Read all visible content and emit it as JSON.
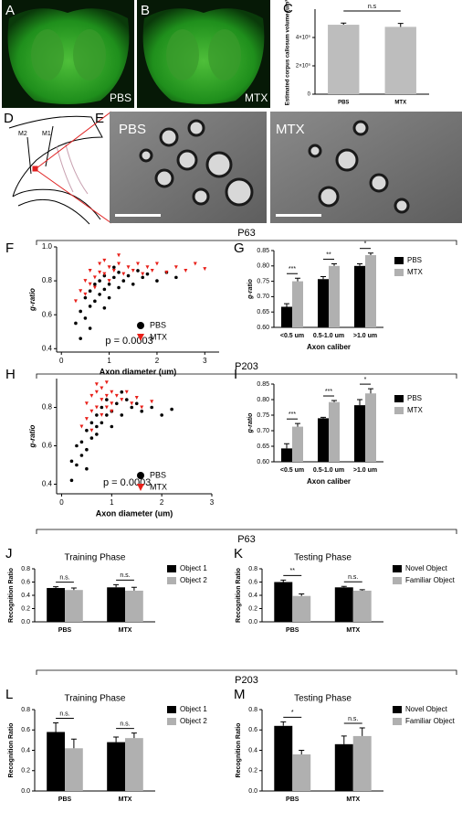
{
  "figure": {
    "panel_labels": [
      "A",
      "B",
      "C",
      "D",
      "E",
      "F",
      "G",
      "H",
      "I",
      "J",
      "K",
      "L",
      "M"
    ],
    "image_labels": {
      "a": "PBS",
      "b": "MTX",
      "e_left": "PBS",
      "e_right": "MTX"
    },
    "diagram_labels": [
      "M2",
      "M1"
    ],
    "section_labels": [
      "P63",
      "P203",
      "P63",
      "P203"
    ]
  },
  "chart_data": [
    {
      "type": "bar",
      "ylabel": "Estimated corpus callosum volume (um³)",
      "categories": [
        "PBS",
        "MTX"
      ],
      "values": [
        4900000000,
        4750000000
      ],
      "errors": [
        120000000,
        240000000
      ],
      "color": "#bdbdbd",
      "ylim": [
        0,
        6000000000
      ],
      "yticks": [
        0,
        {
          "value": 2000000000,
          "label": "2×10⁹"
        },
        {
          "value": 4000000000,
          "label": "4×10⁹"
        }
      ],
      "annotation": "n.s"
    },
    {
      "type": "scatter",
      "xlabel": "Axon diameter (um)",
      "ylabel": "g-ratio",
      "annotation": "p = 0.0003",
      "xlim": [
        -0.1,
        3.3
      ],
      "xticks": [
        0,
        1,
        2,
        3
      ],
      "ylim": [
        0.38,
        1.0
      ],
      "yticks": [
        0.4,
        0.6,
        0.8,
        {
          "value": 1,
          "label": "1.0"
        }
      ],
      "series": [
        {
          "name": "PBS",
          "color": "#000000",
          "marker": "circle",
          "x": [
            0.3,
            0.4,
            0.5,
            0.5,
            0.6,
            0.6,
            0.7,
            0.7,
            0.8,
            0.8,
            0.9,
            0.9,
            1.0,
            1.0,
            1.1,
            1.2,
            1.2,
            1.3,
            1.4,
            1.5,
            1.6,
            1.7,
            1.8,
            2.0,
            2.2,
            2.4,
            0.4,
            0.6,
            0.9,
            1.1
          ],
          "y": [
            0.55,
            0.62,
            0.58,
            0.7,
            0.65,
            0.74,
            0.68,
            0.78,
            0.72,
            0.8,
            0.75,
            0.83,
            0.78,
            0.7,
            0.82,
            0.76,
            0.85,
            0.8,
            0.83,
            0.78,
            0.86,
            0.82,
            0.84,
            0.8,
            0.85,
            0.82,
            0.46,
            0.52,
            0.64,
            0.88
          ]
        },
        {
          "name": "MTX",
          "color": "#e8201a",
          "marker": "triangle",
          "x": [
            0.3,
            0.4,
            0.5,
            0.6,
            0.6,
            0.7,
            0.8,
            0.8,
            0.9,
            1.0,
            1.0,
            1.1,
            1.2,
            1.3,
            1.4,
            1.5,
            1.6,
            1.7,
            1.8,
            1.9,
            2.0,
            2.2,
            2.4,
            2.6,
            2.8,
            3.0,
            0.5,
            0.7,
            0.9,
            1.2
          ],
          "y": [
            0.68,
            0.74,
            0.8,
            0.78,
            0.86,
            0.82,
            0.85,
            0.9,
            0.84,
            0.88,
            0.8,
            0.86,
            0.9,
            0.84,
            0.88,
            0.86,
            0.9,
            0.84,
            0.88,
            0.86,
            0.9,
            0.85,
            0.88,
            0.86,
            0.9,
            0.87,
            0.72,
            0.76,
            0.92,
            0.95
          ]
        }
      ]
    },
    {
      "type": "bar",
      "xlabel": "Axon caliber",
      "ylabel": "g-ratio",
      "categories": [
        "<0.5 um",
        "0.5-1.0 um",
        ">1.0 um"
      ],
      "ylim": [
        0.6,
        0.85
      ],
      "yticks": [
        {
          "value": 0.6,
          "label": "0.60"
        },
        0.65,
        {
          "value": 0.7,
          "label": "0.70"
        },
        0.75,
        {
          "value": 0.8,
          "label": "0.80"
        },
        0.85
      ],
      "series": [
        {
          "name": "PBS",
          "color": "#000000",
          "values": [
            0.667,
            0.757,
            0.8
          ],
          "errors": [
            0.01,
            0.008,
            0.007
          ]
        },
        {
          "name": "MTX",
          "color": "#b0b0b0",
          "values": [
            0.75,
            0.8,
            0.835
          ],
          "errors": [
            0.01,
            0.007,
            0.007
          ]
        }
      ],
      "annotations": [
        "***",
        "**",
        "*"
      ]
    },
    {
      "type": "scatter",
      "xlabel": "Axon diameter (um)",
      "ylabel": "g-ratio",
      "annotation": "p = 0.0003",
      "xlim": [
        -0.1,
        3
      ],
      "xticks": [
        0,
        1,
        2,
        3
      ],
      "ylim": [
        0.35,
        0.95
      ],
      "yticks": [
        0.4,
        0.6,
        0.8
      ],
      "series": [
        {
          "name": "PBS",
          "color": "#000000",
          "marker": "circle",
          "x": [
            0.2,
            0.3,
            0.4,
            0.4,
            0.5,
            0.5,
            0.6,
            0.6,
            0.7,
            0.7,
            0.8,
            0.8,
            0.9,
            0.9,
            1.0,
            1.0,
            1.1,
            1.2,
            1.3,
            1.4,
            1.5,
            1.6,
            1.8,
            2.0,
            2.2,
            0.3,
            0.5,
            0.7,
            0.2,
            1.2
          ],
          "y": [
            0.42,
            0.5,
            0.55,
            0.62,
            0.58,
            0.68,
            0.64,
            0.72,
            0.7,
            0.76,
            0.72,
            0.8,
            0.76,
            0.84,
            0.78,
            0.7,
            0.82,
            0.76,
            0.84,
            0.8,
            0.82,
            0.78,
            0.8,
            0.76,
            0.79,
            0.6,
            0.48,
            0.66,
            0.52,
            0.88
          ]
        },
        {
          "name": "MTX",
          "color": "#e8201a",
          "marker": "triangle",
          "x": [
            0.4,
            0.5,
            0.5,
            0.6,
            0.6,
            0.7,
            0.7,
            0.8,
            0.8,
            0.9,
            0.9,
            1.0,
            1.0,
            1.1,
            1.2,
            1.3,
            1.4,
            1.5,
            1.6,
            1.8,
            0.6,
            0.8,
            1.0,
            0.7,
            0.9
          ],
          "y": [
            0.7,
            0.74,
            0.82,
            0.78,
            0.86,
            0.8,
            0.88,
            0.84,
            0.9,
            0.86,
            0.8,
            0.88,
            0.82,
            0.86,
            0.84,
            0.88,
            0.82,
            0.85,
            0.8,
            0.83,
            0.68,
            0.76,
            0.78,
            0.92,
            0.93
          ]
        }
      ]
    },
    {
      "type": "bar",
      "xlabel": "Axon caliber",
      "ylabel": "g-ratio",
      "categories": [
        "<0.5 um",
        "0.5-1.0 um",
        ">1.0 um"
      ],
      "ylim": [
        0.6,
        0.85
      ],
      "yticks": [
        {
          "value": 0.6,
          "label": "0.60"
        },
        0.65,
        {
          "value": 0.7,
          "label": "0.70"
        },
        0.75,
        {
          "value": 0.8,
          "label": "0.80"
        },
        0.85
      ],
      "series": [
        {
          "name": "PBS",
          "color": "#000000",
          "values": [
            0.643,
            0.74,
            0.782
          ],
          "errors": [
            0.015,
            0.003,
            0.018
          ]
        },
        {
          "name": "MTX",
          "color": "#b0b0b0",
          "values": [
            0.713,
            0.792,
            0.82
          ],
          "errors": [
            0.01,
            0.005,
            0.015
          ]
        }
      ],
      "annotations": [
        "***",
        "***",
        "*"
      ]
    },
    {
      "type": "bar",
      "title": "Training Phase",
      "ylabel": "Recognition Ratio",
      "categories": [
        "PBS",
        "MTX"
      ],
      "ylim": [
        0,
        0.8
      ],
      "yticks": [
        {
          "value": 0,
          "label": "0.0"
        },
        0.2,
        0.4,
        0.6,
        0.8
      ],
      "series": [
        {
          "name": "Object 1",
          "color": "#000000",
          "values": [
            0.51,
            0.52
          ],
          "errors": [
            0.02,
            0.04
          ]
        },
        {
          "name": "Object 2",
          "color": "#b0b0b0",
          "values": [
            0.48,
            0.47
          ],
          "errors": [
            0.03,
            0.05
          ]
        }
      ],
      "annotations": [
        "n.s.",
        "n.s."
      ]
    },
    {
      "type": "bar",
      "title": "Testing Phase",
      "ylabel": "Recognition Ratio",
      "categories": [
        "PBS",
        "MTX"
      ],
      "ylim": [
        0,
        0.8
      ],
      "yticks": [
        {
          "value": 0,
          "label": "0.0"
        },
        0.2,
        0.4,
        0.6,
        0.8
      ],
      "series": [
        {
          "name": "Novel Object",
          "color": "#000000",
          "values": [
            0.6,
            0.52
          ],
          "errors": [
            0.03,
            0.015
          ]
        },
        {
          "name": "Familiar Object",
          "color": "#b0b0b0",
          "values": [
            0.39,
            0.47
          ],
          "errors": [
            0.03,
            0.015
          ]
        }
      ],
      "annotations": [
        "**",
        "n.s."
      ]
    },
    {
      "type": "bar",
      "title": "Training Phase",
      "ylabel": "Recognition Ratio",
      "categories": [
        "PBS",
        "MTX"
      ],
      "ylim": [
        0,
        0.8
      ],
      "yticks": [
        {
          "value": 0,
          "label": "0.0"
        },
        0.2,
        0.4,
        0.6,
        0.8
      ],
      "series": [
        {
          "name": "Object 1",
          "color": "#000000",
          "values": [
            0.58,
            0.48
          ],
          "errors": [
            0.09,
            0.05
          ]
        },
        {
          "name": "Object 2",
          "color": "#b0b0b0",
          "values": [
            0.42,
            0.52
          ],
          "errors": [
            0.09,
            0.05
          ]
        }
      ],
      "annotations": [
        "n.s.",
        "n.s."
      ]
    },
    {
      "type": "bar",
      "title": "Testing Phase",
      "ylabel": "Recognition Ratio",
      "categories": [
        "PBS",
        "MTX"
      ],
      "ylim": [
        0,
        0.8
      ],
      "yticks": [
        {
          "value": 0,
          "label": "0.0"
        },
        0.2,
        0.4,
        0.6,
        0.8
      ],
      "series": [
        {
          "name": "Novel Object",
          "color": "#000000",
          "values": [
            0.64,
            0.46
          ],
          "errors": [
            0.04,
            0.08
          ]
        },
        {
          "name": "Familiar Object",
          "color": "#b0b0b0",
          "values": [
            0.36,
            0.54
          ],
          "errors": [
            0.04,
            0.08
          ]
        }
      ],
      "annotations": [
        "*",
        "n.s."
      ]
    }
  ]
}
